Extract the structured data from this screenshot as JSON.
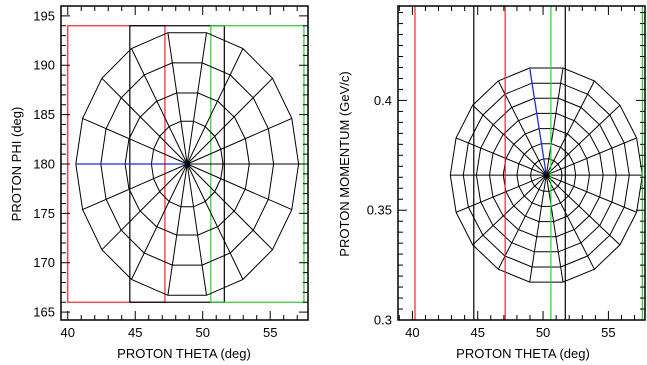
{
  "chart_data": [
    {
      "type": "line",
      "xlabel": "PROTON THETA (deg)",
      "ylabel": "PROTON PHI (deg)",
      "xlim": [
        39.5,
        57.8
      ],
      "ylim": [
        164.2,
        196.0
      ],
      "xticks": [
        40,
        45,
        50,
        55
      ],
      "yticks": [
        165,
        170,
        175,
        180,
        185,
        190,
        195
      ],
      "grid": false,
      "polar_grid": {
        "center": [
          48.85,
          180.0
        ],
        "radii_x": [
          2.65,
          4.6,
          6.4,
          8.25
        ],
        "radii_y": [
          4.4,
          7.3,
          10.4,
          13.5
        ],
        "spokes": 18,
        "spoke_color_blue_angle_deg": 180
      },
      "rectangles": [
        {
          "color": "#e8242b",
          "theta": [
            40.0,
            47.2
          ],
          "phi": [
            166.0,
            194.0
          ]
        },
        {
          "color": "#000000",
          "theta": [
            44.6,
            51.6
          ],
          "phi": [
            166.0,
            194.0
          ]
        },
        {
          "color": "#2ecc2e",
          "theta": [
            50.6,
            57.5
          ],
          "phi": [
            166.0,
            194.0
          ]
        }
      ]
    },
    {
      "type": "line",
      "xlabel": "PROTON THETA (deg)",
      "ylabel": "PROTON MOMENTUM (GeV/c)",
      "xlim": [
        38.9,
        57.8
      ],
      "ylim": [
        0.3,
        0.443
      ],
      "xticks": [
        40,
        45,
        50,
        55
      ],
      "yticks": [
        0.3,
        0.35,
        0.4
      ],
      "ytick_labels": [
        "0.3",
        "0.35",
        "0.4"
      ],
      "grid": false,
      "polar_grid": {
        "center": [
          50.25,
          0.366
        ],
        "radii_x": [
          1.2,
          2.25,
          3.3,
          4.35,
          5.35,
          6.35,
          7.35
        ],
        "radii_y": [
          0.0075,
          0.0145,
          0.0215,
          0.0285,
          0.0355,
          0.0425,
          0.0495
        ],
        "spokes": 18,
        "spoke_color_blue_angle_deg": 100
      },
      "vertical_lines": [
        {
          "color": "#e8242b",
          "theta": 40.2
        },
        {
          "color": "#000000",
          "theta": 44.7
        },
        {
          "color": "#e8242b",
          "theta": 47.1
        },
        {
          "color": "#2ecc2e",
          "theta": 50.6
        },
        {
          "color": "#000000",
          "theta": 51.7
        },
        {
          "color": "#2ecc2e",
          "theta": 57.6
        }
      ]
    }
  ]
}
